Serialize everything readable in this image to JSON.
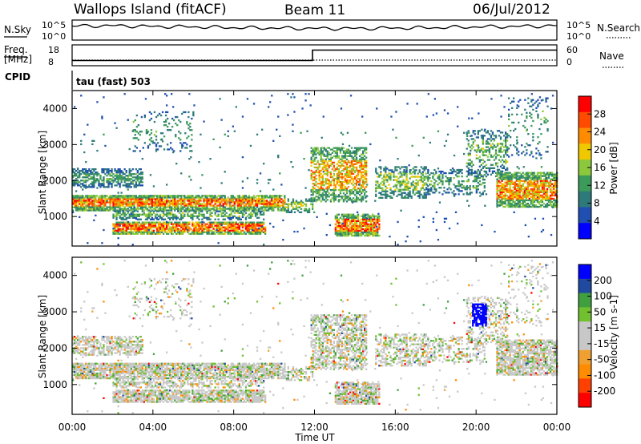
{
  "header": {
    "station": "Wallops Island (fitACF)",
    "beam": "Beam 11",
    "date": "06/Jul/2012",
    "cpid": "CPID",
    "mode": "tau (fast) 503"
  },
  "status_panel": {
    "nsky_label": "N.Sky",
    "nsearch_label": "N.Search",
    "freq_label": "Freq.",
    "freq_unit": "[MHz]",
    "nave_label": "Nave",
    "noise_ticks_left": [
      "10^5",
      "10^0"
    ],
    "noise_ticks_right": [
      "10^5",
      "10^0"
    ],
    "freq_ticks": [
      "18",
      "8"
    ],
    "nave_ticks": [
      "60",
      "0"
    ]
  },
  "x_axis": {
    "label": "Time UT",
    "ticks": [
      "00:00",
      "04:00",
      "08:00",
      "12:00",
      "16:00",
      "20:00",
      "00:00"
    ]
  },
  "colors": {
    "power_scale": [
      "#0000ff",
      "#1f4fb0",
      "#2e7a7a",
      "#3c9a5a",
      "#8cc83c",
      "#f0c800",
      "#ff8c00",
      "#ff4a00",
      "#ff0000"
    ],
    "velocity_scale": [
      "#ff0000",
      "#ff4000",
      "#ff8c00",
      "#f0a030",
      "#c8c8c8",
      "#c8c8c8",
      "#70c030",
      "#40a040",
      "#204aa0",
      "#0000ff"
    ]
  },
  "chart_data": [
    {
      "type": "heatmap",
      "panel": "power",
      "ylabel": "Slant Range [km]",
      "yticks": [
        "4000",
        "3000",
        "2000",
        "1000"
      ],
      "ylim": [
        180,
        4500
      ],
      "xlim": [
        "00:00",
        "24:00"
      ],
      "colorbar": {
        "label": "Power [dB]",
        "ticks": [
          "28",
          "24",
          "20",
          "16",
          "12",
          "8",
          "4"
        ]
      },
      "bands": [
        {
          "t": [
            0.0,
            10.5
          ],
          "r": [
            1250,
            1550
          ],
          "level": "high"
        },
        {
          "t": [
            2.0,
            9.5
          ],
          "r": [
            500,
            800
          ],
          "level": "high"
        },
        {
          "t": [
            12.0,
            14.5
          ],
          "r": [
            1500,
            2000
          ],
          "level": "high"
        },
        {
          "t": [
            13.5,
            15.0
          ],
          "r": [
            500,
            900
          ],
          "level": "high"
        },
        {
          "t": [
            22.0,
            24.0
          ],
          "r": [
            1300,
            1800
          ],
          "level": "high"
        }
      ]
    },
    {
      "type": "heatmap",
      "panel": "velocity",
      "ylabel": "Slant Range [km]",
      "yticks": [
        "4000",
        "3000",
        "2000",
        "1000"
      ],
      "ylim": [
        180,
        4500
      ],
      "xlim": [
        "00:00",
        "24:00"
      ],
      "colorbar": {
        "label": "Velocity [m s-1]",
        "ticks": [
          "200",
          "100",
          "50",
          "15",
          "-15",
          "-50",
          "-100",
          "-200"
        ]
      },
      "features": [
        {
          "t": [
            19.8,
            20.5
          ],
          "r": [
            2600,
            3200
          ],
          "level": "+200"
        }
      ]
    },
    {
      "type": "line",
      "panel": "noise",
      "series": [
        {
          "name": "N.Sky",
          "values": [
            3.5,
            3.6,
            3.4,
            3.3,
            3.1,
            3.0,
            2.9,
            2.9,
            3.0,
            3.1,
            3.3,
            3.4,
            3.6
          ]
        }
      ],
      "x": [
        "00:00",
        "02:00",
        "04:00",
        "06:00",
        "08:00",
        "10:00",
        "12:00",
        "14:00",
        "16:00",
        "18:00",
        "20:00",
        "22:00",
        "24:00"
      ]
    },
    {
      "type": "line",
      "panel": "freq",
      "series": [
        {
          "name": "Freq.",
          "x": [
            0,
            11.9,
            11.9,
            24
          ],
          "values": [
            10.5,
            10.5,
            15.5,
            15.5
          ]
        }
      ]
    }
  ]
}
